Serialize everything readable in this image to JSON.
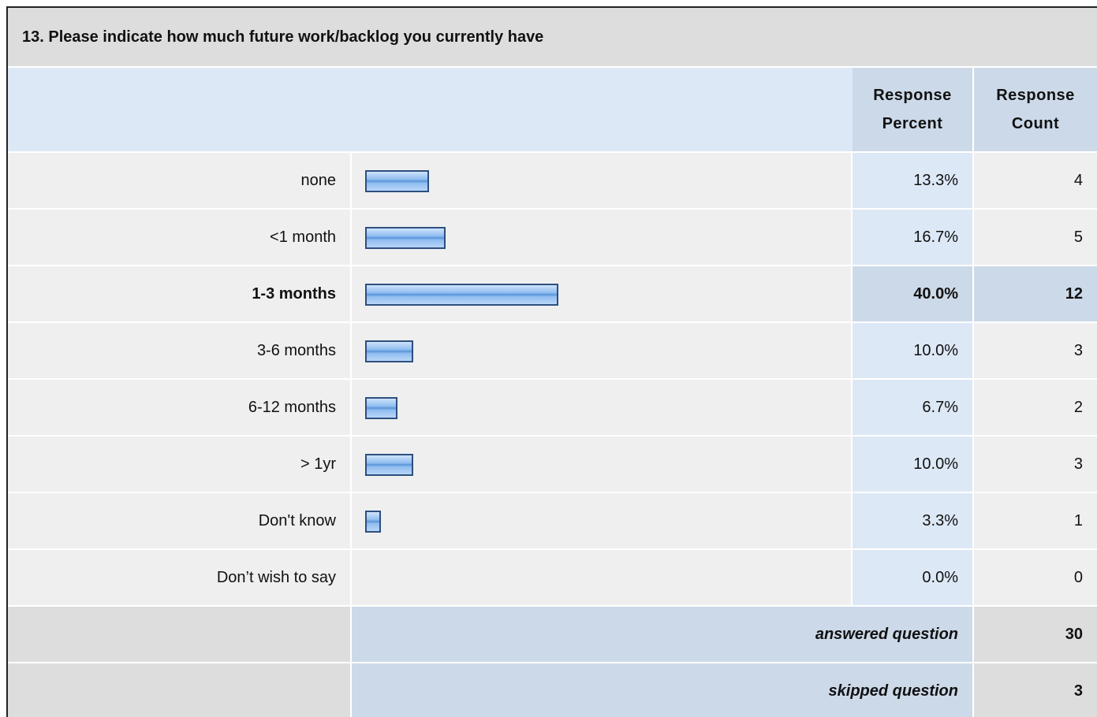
{
  "table": {
    "title": "13. Please indicate how much future work/backlog you currently have",
    "headers": [
      "Response Percent",
      "Response Count"
    ],
    "rows": [
      {
        "label": "none",
        "percent": 13.3,
        "percent_label": "13.3%",
        "count": 4
      },
      {
        "label": "<1 month",
        "percent": 16.7,
        "percent_label": "16.7%",
        "count": 5
      },
      {
        "label": "1-3 months",
        "percent": 40.0,
        "percent_label": "40.0%",
        "count": 12
      },
      {
        "label": "3-6 months",
        "percent": 10.0,
        "percent_label": "10.0%",
        "count": 3
      },
      {
        "label": "6-12 months",
        "percent": 6.7,
        "percent_label": "6.7%",
        "count": 2
      },
      {
        "label": "> 1yr",
        "percent": 10.0,
        "percent_label": "10.0%",
        "count": 3
      },
      {
        "label": "Don't know",
        "percent": 3.3,
        "percent_label": "3.3%",
        "count": 1
      },
      {
        "label": "Don’t wish to say",
        "percent": 0.0,
        "percent_label": "0.0%",
        "count": 0
      }
    ],
    "summary": [
      {
        "label": "answered question",
        "count": 30
      },
      {
        "label": "skipped question",
        "count": 3
      }
    ]
  }
}
